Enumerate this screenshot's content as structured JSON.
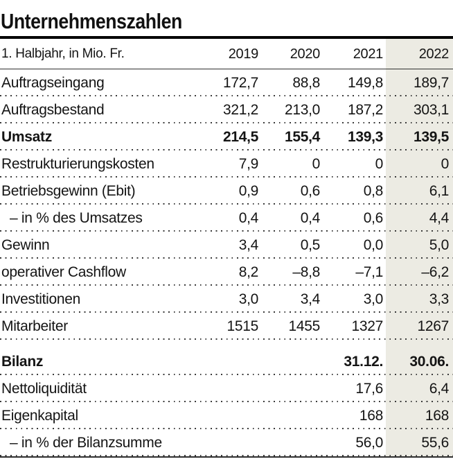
{
  "chart_data": {
    "type": "table",
    "title": "Unternehmenszahlen",
    "corner_label": "1. Halbjahr, in Mio. Fr.",
    "columns": [
      "2019",
      "2020",
      "2021",
      "2022"
    ],
    "highlighted_column": "2022",
    "rows": [
      {
        "label": "Auftragseingang",
        "values": [
          "172,7",
          "88,8",
          "149,8",
          "189,7"
        ],
        "bold": false,
        "indent": false,
        "section": false
      },
      {
        "label": "Auftragsbestand",
        "values": [
          "321,2",
          "213,0",
          "187,2",
          "303,1"
        ],
        "bold": false,
        "indent": false,
        "section": false
      },
      {
        "label": "Umsatz",
        "values": [
          "214,5",
          "155,4",
          "139,3",
          "139,5"
        ],
        "bold": true,
        "indent": false,
        "section": false
      },
      {
        "label": "Restrukturierungskosten",
        "values": [
          "7,9",
          "0",
          "0",
          "0"
        ],
        "bold": false,
        "indent": false,
        "section": false
      },
      {
        "label": "Betriebsgewinn (Ebit)",
        "values": [
          "0,9",
          "0,6",
          "0,8",
          "6,1"
        ],
        "bold": false,
        "indent": false,
        "section": false
      },
      {
        "label": "– in % des Umsatzes",
        "values": [
          "0,4",
          "0,4",
          "0,6",
          "4,4"
        ],
        "bold": false,
        "indent": true,
        "section": false
      },
      {
        "label": "Gewinn",
        "values": [
          "3,4",
          "0,5",
          "0,0",
          "5,0"
        ],
        "bold": false,
        "indent": false,
        "section": false
      },
      {
        "label": "operativer Cashflow",
        "values": [
          "8,2",
          "–8,8",
          "–7,1",
          "–6,2"
        ],
        "bold": false,
        "indent": false,
        "section": false
      },
      {
        "label": "Investitionen",
        "values": [
          "3,0",
          "3,4",
          "3,0",
          "3,3"
        ],
        "bold": false,
        "indent": false,
        "section": false
      },
      {
        "label": "Mitarbeiter",
        "values": [
          "1515",
          "1455",
          "1327",
          "1267"
        ],
        "bold": false,
        "indent": false,
        "section": false
      },
      {
        "label": "Bilanz",
        "values": [
          "",
          "",
          "31.12.",
          "30.06."
        ],
        "bold": true,
        "indent": false,
        "section": true
      },
      {
        "label": "Nettoliquidität",
        "values": [
          "",
          "",
          "17,6",
          "6,4"
        ],
        "bold": false,
        "indent": false,
        "section": false
      },
      {
        "label": "Eigenkapital",
        "values": [
          "",
          "",
          "168",
          "168"
        ],
        "bold": false,
        "indent": false,
        "section": false
      },
      {
        "label": "– in % der Bilanzsumme",
        "values": [
          "",
          "",
          "56,0",
          "55,6"
        ],
        "bold": false,
        "indent": true,
        "section": false
      }
    ]
  },
  "colors": {
    "highlight_column_background": "#ecebe3",
    "rule_black": "#000000",
    "text": "#141414"
  }
}
